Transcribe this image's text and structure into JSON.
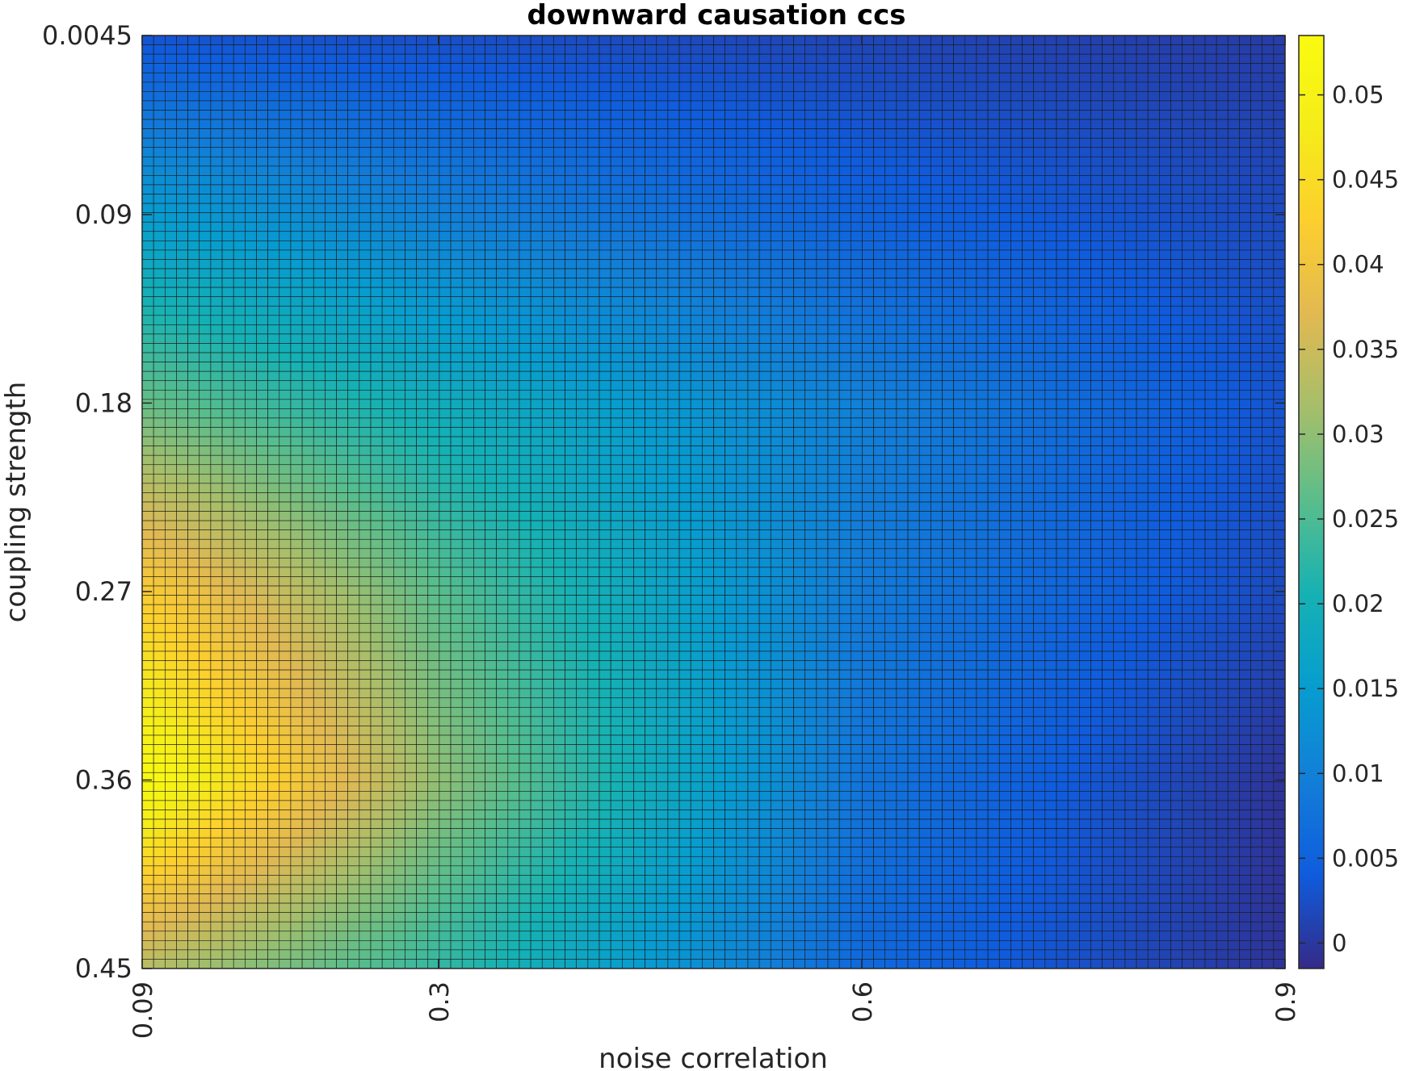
{
  "chart_data": {
    "type": "heatmap",
    "title": "downward causation ccs",
    "xlabel": "noise correlation",
    "ylabel": "coupling strength",
    "x_ticks": [
      "0.09",
      "0.3",
      "0.6",
      "0.9"
    ],
    "x_tick_values": [
      0.09,
      0.3,
      0.6,
      0.9
    ],
    "y_ticks": [
      "0.0045",
      "0.09",
      "0.18",
      "0.27",
      "0.36",
      "0.45"
    ],
    "y_tick_values": [
      0.0045,
      0.09,
      0.18,
      0.27,
      0.36,
      0.45
    ],
    "xlim": [
      0.09,
      0.9
    ],
    "ylim": [
      0.0045,
      0.45
    ],
    "y_direction": "reverse",
    "colorbar": {
      "ticks": [
        "0",
        "0.005",
        "0.01",
        "0.015",
        "0.02",
        "0.025",
        "0.03",
        "0.035",
        "0.04",
        "0.045",
        "0.05"
      ],
      "tick_values": [
        0,
        0.005,
        0.01,
        0.015,
        0.02,
        0.025,
        0.03,
        0.035,
        0.04,
        0.045,
        0.05
      ],
      "clim": [
        -0.0015,
        0.0535
      ],
      "colormap": "parula",
      "placement": "right"
    },
    "grid_resolution": {
      "cols": 100,
      "rows": 100
    },
    "z_sample_x": [
      0.09,
      0.3,
      0.6,
      0.9
    ],
    "z_sample_y": [
      0.0045,
      0.09,
      0.18,
      0.27,
      0.36,
      0.45
    ],
    "z_sample_values": [
      [
        0.003,
        0.0025,
        0.0015,
        0.0005
      ],
      [
        0.015,
        0.01,
        0.005,
        0.002
      ],
      [
        0.027,
        0.019,
        0.01,
        0.003
      ],
      [
        0.042,
        0.026,
        0.009,
        0.002
      ],
      [
        0.053,
        0.03,
        0.008,
        -0.0005
      ],
      [
        0.033,
        0.023,
        0.006,
        -0.0005
      ]
    ]
  }
}
